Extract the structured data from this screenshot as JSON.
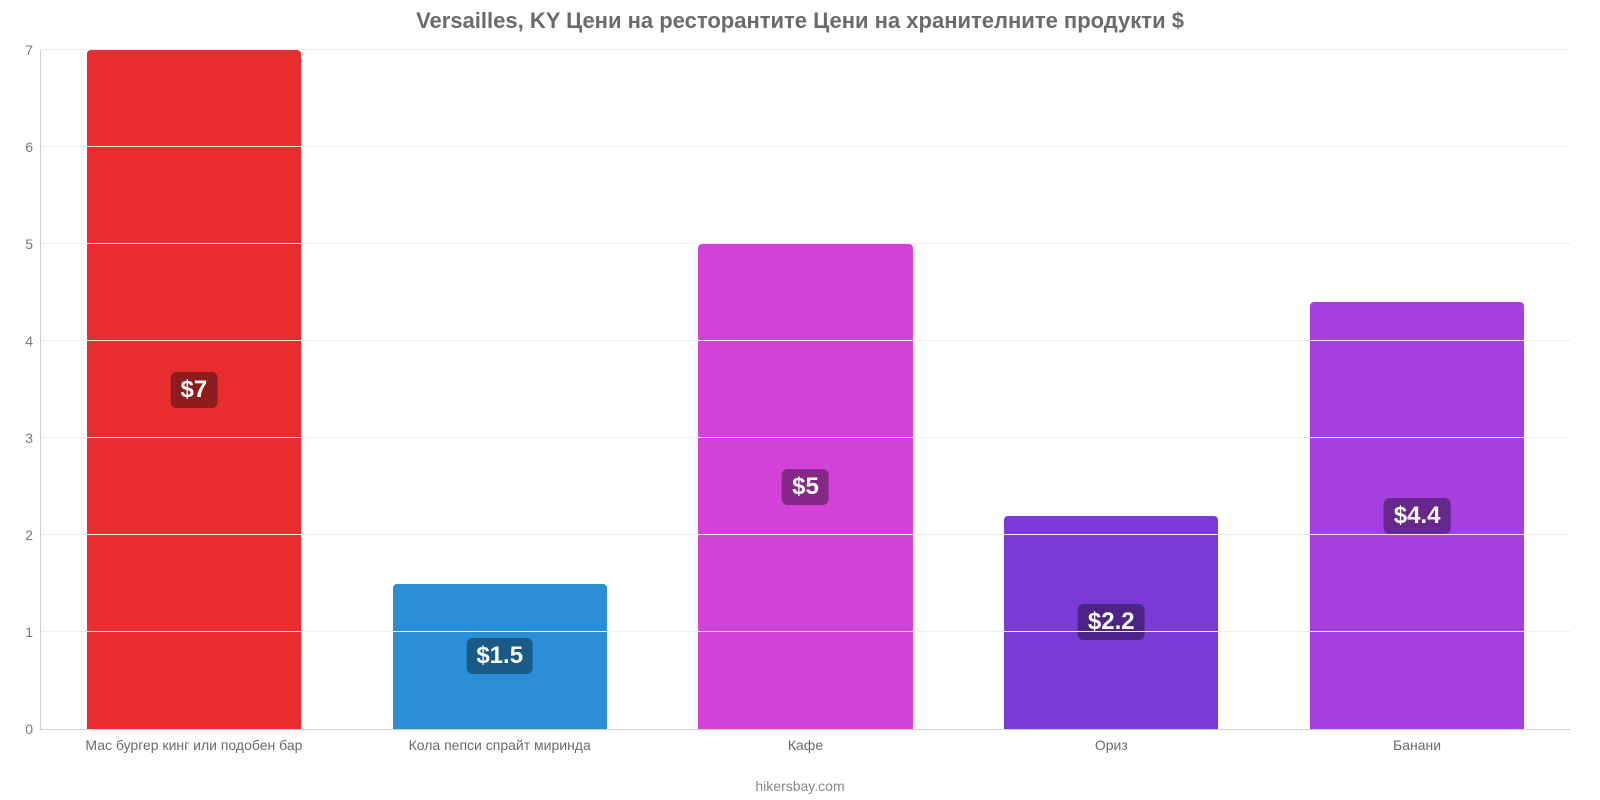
{
  "chart": {
    "type": "bar",
    "title": "Versailles, KY Цени на ресторантите Цени на хранителните продукти $",
    "title_fontsize": 22,
    "title_color": "#6b6b6b",
    "attribution": "hikersbay.com",
    "attribution_color": "#888888",
    "background_color": "#ffffff",
    "axis_color": "#d0d0d0",
    "grid_color": "#ededed",
    "tick_label_color": "#7a7a7a",
    "tick_label_fontsize": 14,
    "xtick_label_color": "#6b6b6b",
    "ylim": [
      0,
      7
    ],
    "ytick_step": 1,
    "yticks": [
      0,
      1,
      2,
      3,
      4,
      5,
      6,
      7
    ],
    "bar_width_pct": 70,
    "value_label_fontsize": 24,
    "value_label_color": "#ffffff",
    "categories": [
      "Мас бургер кинг или подобен бар",
      "Кола пепси спрайт миринда",
      "Кафе",
      "Ориз",
      "Банани"
    ],
    "values": [
      7,
      1.5,
      5,
      2.2,
      4.4
    ],
    "value_labels": [
      "$7",
      "$1.5",
      "$5",
      "$2.2",
      "$4.4"
    ],
    "bar_colors": [
      "#e92d2f",
      "#2a8fd6",
      "#d341d8",
      "#7b3ad6",
      "#a63fe0"
    ],
    "badge_colors": [
      "#8e1c1d",
      "#1a5a86",
      "#852887",
      "#4c2486",
      "#68278c"
    ]
  }
}
